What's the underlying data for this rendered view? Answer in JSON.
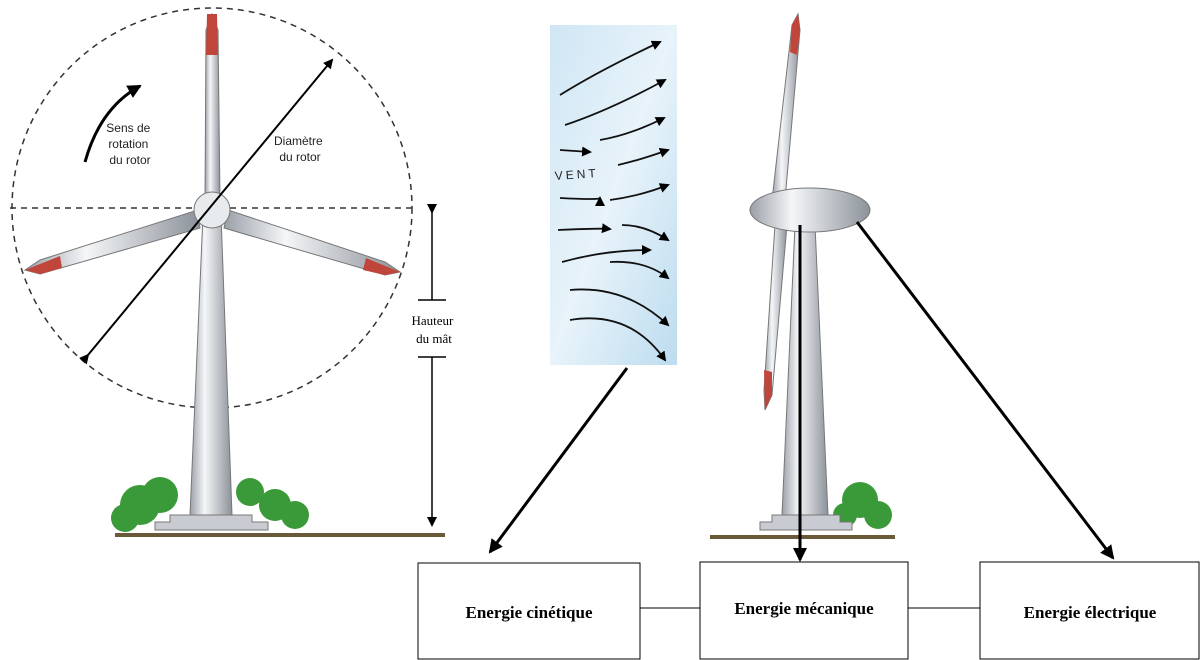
{
  "left_turbine": {
    "rotation_label": [
      "Sens de",
      "rotation",
      "du rotor"
    ],
    "diameter_label": [
      "Diamètre",
      "du rotor"
    ],
    "height_label": [
      "Hauteur",
      "du mât"
    ]
  },
  "wind": {
    "label": "VENT"
  },
  "energy_chain": {
    "boxes": [
      "Energie cinétique",
      "Energie mécanique",
      "Energie électrique"
    ]
  }
}
